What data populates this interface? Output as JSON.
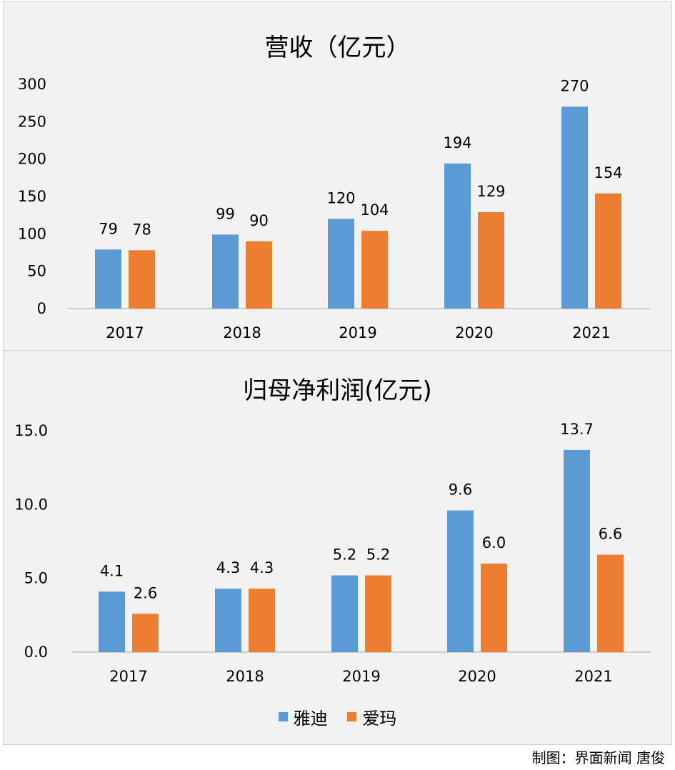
{
  "colors": {
    "yadi": "#5b9bd5",
    "aima": "#ed7d31",
    "axis": "#bfbfbf",
    "panel": "#f2f2f2"
  },
  "chart_data": [
    {
      "type": "bar",
      "title": "营收（亿元）",
      "categories": [
        "2017",
        "2018",
        "2019",
        "2020",
        "2021"
      ],
      "series": [
        {
          "name": "雅迪",
          "values": [
            79,
            99,
            120,
            194,
            270
          ],
          "labels": [
            "79",
            "99",
            "120",
            "194",
            "270"
          ]
        },
        {
          "name": "爱玛",
          "values": [
            78,
            90,
            104,
            129,
            154
          ],
          "labels": [
            "78",
            "90",
            "104",
            "129",
            "154"
          ]
        }
      ],
      "yticks": [
        "0",
        "50",
        "100",
        "150",
        "200",
        "250",
        "300"
      ],
      "ylim": [
        0,
        300
      ],
      "xlabel": "",
      "ylabel": ""
    },
    {
      "type": "bar",
      "title": "归母净利润(亿元)",
      "categories": [
        "2017",
        "2018",
        "2019",
        "2020",
        "2021"
      ],
      "series": [
        {
          "name": "雅迪",
          "values": [
            4.1,
            4.3,
            5.2,
            9.6,
            13.7
          ],
          "labels": [
            "4.1",
            "4.3",
            "5.2",
            "9.6",
            "13.7"
          ]
        },
        {
          "name": "爱玛",
          "values": [
            2.6,
            4.3,
            5.2,
            6.0,
            6.6
          ],
          "labels": [
            "2.6",
            "4.3",
            "5.2",
            "6.0",
            "6.6"
          ]
        }
      ],
      "yticks": [
        "0.0",
        "5.0",
        "10.0",
        "15.0"
      ],
      "ylim": [
        0,
        15
      ],
      "xlabel": "",
      "ylabel": ""
    }
  ],
  "legend": {
    "items": [
      "雅迪",
      "爱玛"
    ]
  },
  "credit": "制图：界面新闻 唐俊"
}
